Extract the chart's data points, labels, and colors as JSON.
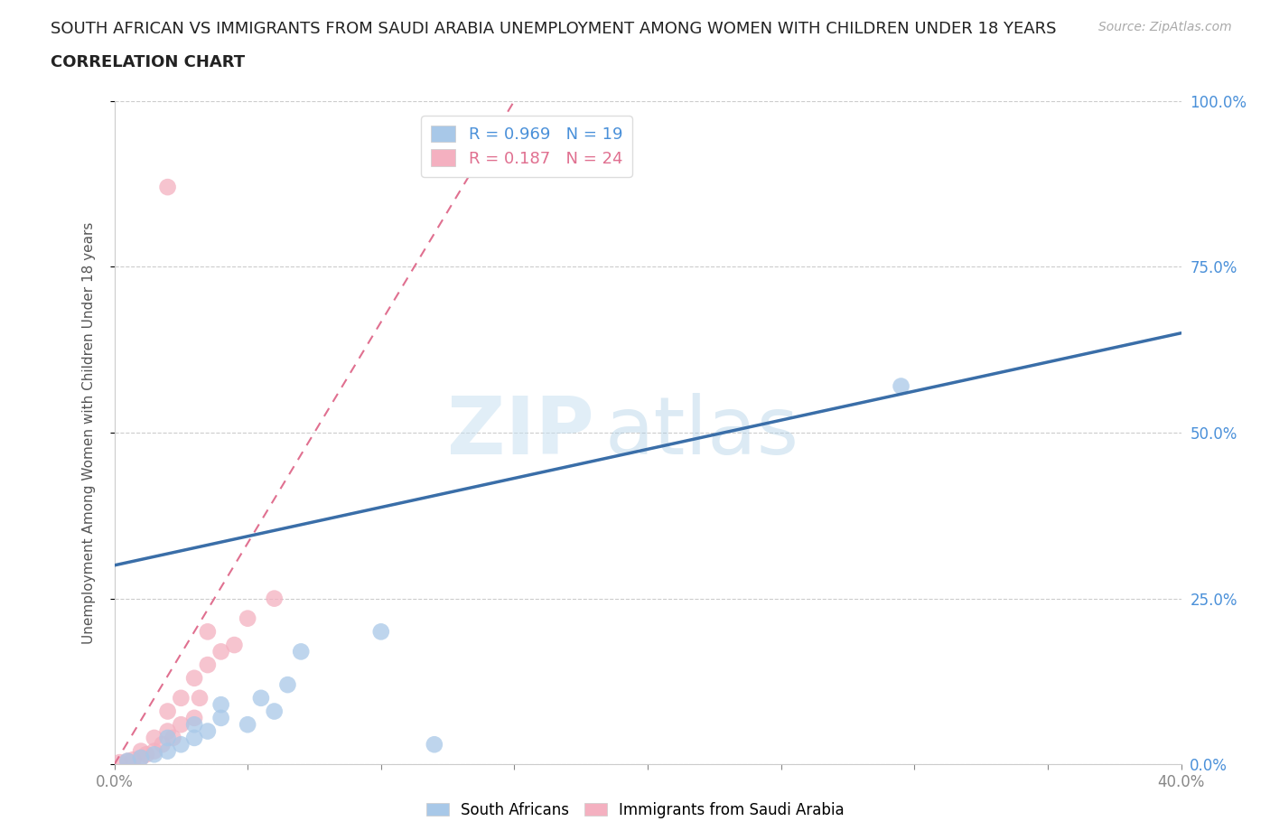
{
  "title_line1": "SOUTH AFRICAN VS IMMIGRANTS FROM SAUDI ARABIA UNEMPLOYMENT AMONG WOMEN WITH CHILDREN UNDER 18 YEARS",
  "title_line2": "CORRELATION CHART",
  "source": "Source: ZipAtlas.com",
  "ylabel": "Unemployment Among Women with Children Under 18 years",
  "xlim": [
    0.0,
    0.4
  ],
  "ylim": [
    0.0,
    1.0
  ],
  "xticks": [
    0.0,
    0.05,
    0.1,
    0.15,
    0.2,
    0.25,
    0.3,
    0.35,
    0.4
  ],
  "xtick_labels": [
    "0.0%",
    "",
    "",
    "",
    "",
    "",
    "",
    "",
    "40.0%"
  ],
  "yticks": [
    0.0,
    0.25,
    0.5,
    0.75,
    1.0
  ],
  "ytick_labels": [
    "0.0%",
    "25.0%",
    "50.0%",
    "75.0%",
    "100.0%"
  ],
  "blue_R": "0.969",
  "blue_N": "19",
  "pink_R": "0.187",
  "pink_N": "24",
  "blue_color": "#a8c8e8",
  "blue_line_color": "#3a6ea8",
  "pink_color": "#f4b0c0",
  "pink_line_color": "#e07090",
  "watermark_ZIP": "ZIP",
  "watermark_atlas": "atlas",
  "legend_label_blue": "South Africans",
  "legend_label_pink": "Immigrants from Saudi Arabia",
  "blue_scatter_x": [
    0.005,
    0.01,
    0.015,
    0.02,
    0.02,
    0.025,
    0.03,
    0.03,
    0.035,
    0.04,
    0.04,
    0.05,
    0.055,
    0.06,
    0.065,
    0.07,
    0.1,
    0.295,
    0.12
  ],
  "blue_scatter_y": [
    0.005,
    0.01,
    0.015,
    0.02,
    0.04,
    0.03,
    0.04,
    0.06,
    0.05,
    0.07,
    0.09,
    0.06,
    0.1,
    0.08,
    0.12,
    0.17,
    0.2,
    0.57,
    0.03
  ],
  "pink_scatter_x": [
    0.002,
    0.005,
    0.007,
    0.01,
    0.01,
    0.012,
    0.015,
    0.015,
    0.018,
    0.02,
    0.02,
    0.022,
    0.025,
    0.025,
    0.03,
    0.03,
    0.032,
    0.035,
    0.035,
    0.04,
    0.045,
    0.05,
    0.02,
    0.06
  ],
  "pink_scatter_y": [
    0.003,
    0.005,
    0.007,
    0.01,
    0.02,
    0.015,
    0.02,
    0.04,
    0.03,
    0.05,
    0.08,
    0.04,
    0.06,
    0.1,
    0.07,
    0.13,
    0.1,
    0.15,
    0.2,
    0.17,
    0.18,
    0.22,
    0.87,
    0.25
  ],
  "blue_line_x": [
    0.0,
    0.4
  ],
  "blue_line_y": [
    0.3,
    0.65
  ],
  "pink_line_x": [
    0.0,
    0.15
  ],
  "pink_line_y": [
    0.0,
    1.0
  ],
  "background_color": "#ffffff",
  "grid_color": "#cccccc",
  "title_color": "#222222",
  "axis_color": "#cccccc",
  "right_ytick_color": "#4a90d9",
  "title_fontsize": 13,
  "subtitle_fontsize": 13,
  "source_fontsize": 10
}
